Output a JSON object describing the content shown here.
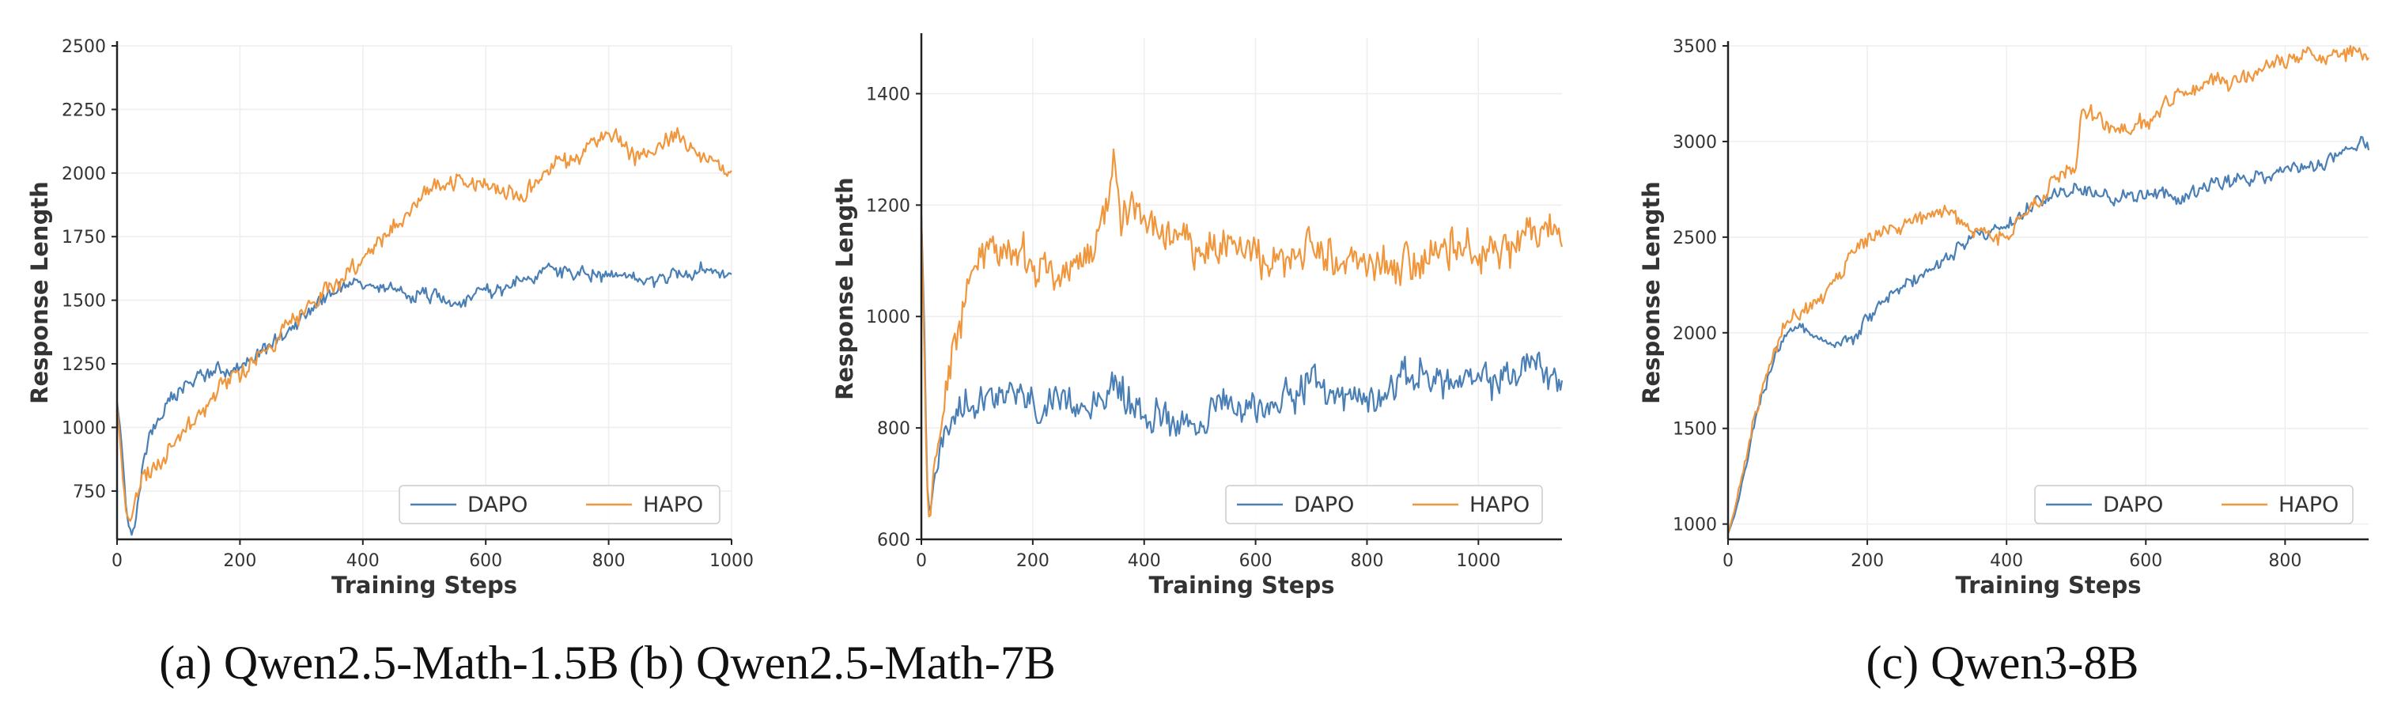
{
  "colors": {
    "DAPO": "#4a7fb5",
    "HAPO": "#f0963c",
    "grid": "#eeeeee",
    "axis": "#222222"
  },
  "chart_data": [
    {
      "type": "line",
      "caption": "(a) Qwen2.5-Math-1.5B",
      "xlabel": "Training Steps",
      "ylabel": "Response Length",
      "xlim": [
        0,
        1000
      ],
      "ylim": [
        560,
        2500
      ],
      "xticks": [
        0,
        200,
        400,
        600,
        800,
        1000
      ],
      "xtick_labels": [
        "0",
        "200",
        "400",
        "600",
        "800",
        "1000"
      ],
      "yticks": [
        750,
        1000,
        1250,
        1500,
        1750,
        2000,
        2250,
        2500
      ],
      "ytick_labels": [
        "750",
        "1000",
        "1250",
        "1500",
        "1750",
        "2000",
        "2250",
        "2500"
      ],
      "grid": true,
      "legend": "bottom-right",
      "series": [
        {
          "name": "DAPO",
          "x": [
            0,
            5,
            10,
            15,
            20,
            25,
            30,
            40,
            50,
            60,
            80,
            100,
            120,
            150,
            200,
            250,
            300,
            350,
            380,
            400,
            450,
            500,
            550,
            600,
            650,
            700,
            750,
            800,
            850,
            900,
            950,
            1000
          ],
          "values": [
            1100,
            1000,
            850,
            680,
            600,
            580,
            620,
            800,
            950,
            1020,
            1080,
            1130,
            1180,
            1220,
            1230,
            1320,
            1430,
            1540,
            1570,
            1560,
            1530,
            1520,
            1500,
            1540,
            1560,
            1620,
            1610,
            1590,
            1580,
            1600,
            1620,
            1600
          ]
        },
        {
          "name": "HAPO",
          "x": [
            0,
            5,
            10,
            15,
            20,
            25,
            30,
            40,
            50,
            60,
            80,
            100,
            150,
            200,
            250,
            300,
            350,
            400,
            450,
            500,
            550,
            600,
            650,
            700,
            750,
            800,
            850,
            900,
            950,
            1000
          ],
          "values": [
            1090,
            950,
            780,
            660,
            630,
            640,
            700,
            800,
            820,
            840,
            880,
            960,
            1100,
            1220,
            1320,
            1440,
            1560,
            1650,
            1800,
            1920,
            1980,
            1950,
            1900,
            2000,
            2080,
            2150,
            2050,
            2150,
            2080,
            2000
          ]
        }
      ]
    },
    {
      "type": "line",
      "caption": "(b) Qwen2.5-Math-7B",
      "xlabel": "Training Steps",
      "ylabel": "Response Length",
      "xlim": [
        0,
        1150
      ],
      "ylim": [
        600,
        1500
      ],
      "xticks": [
        0,
        200,
        400,
        600,
        800,
        1000
      ],
      "xtick_labels": [
        "0",
        "200",
        "400",
        "600",
        "800",
        "1000"
      ],
      "yticks": [
        600,
        800,
        1000,
        1200,
        1400
      ],
      "ytick_labels": [
        "600",
        "800",
        "1000",
        "1200",
        "1400"
      ],
      "grid": true,
      "legend": "bottom-right",
      "series": [
        {
          "name": "DAPO",
          "x": [
            0,
            5,
            10,
            15,
            20,
            30,
            40,
            60,
            80,
            100,
            150,
            200,
            250,
            300,
            350,
            400,
            450,
            500,
            550,
            600,
            650,
            700,
            750,
            800,
            850,
            900,
            950,
            1000,
            1050,
            1100,
            1150
          ],
          "values": [
            1180,
            1000,
            700,
            640,
            680,
            740,
            780,
            820,
            850,
            860,
            870,
            840,
            830,
            850,
            870,
            820,
            820,
            810,
            840,
            830,
            860,
            880,
            860,
            850,
            880,
            900,
            880,
            880,
            890,
            920,
            880
          ]
        },
        {
          "name": "HAPO",
          "x": [
            0,
            5,
            10,
            15,
            20,
            30,
            40,
            60,
            80,
            100,
            130,
            150,
            200,
            250,
            300,
            330,
            345,
            360,
            400,
            450,
            500,
            550,
            600,
            650,
            700,
            750,
            800,
            850,
            900,
            950,
            1000,
            1050,
            1100,
            1150
          ],
          "values": [
            1180,
            950,
            700,
            630,
            680,
            780,
            860,
            950,
            1030,
            1100,
            1130,
            1120,
            1090,
            1070,
            1100,
            1180,
            1290,
            1180,
            1160,
            1150,
            1120,
            1120,
            1110,
            1100,
            1120,
            1100,
            1090,
            1080,
            1100,
            1120,
            1120,
            1130,
            1160,
            1150
          ]
        }
      ]
    },
    {
      "type": "line",
      "caption": "(c) Qwen3-8B",
      "xlabel": "Training Steps",
      "ylabel": "Response Length",
      "xlim": [
        0,
        920
      ],
      "ylim": [
        920,
        3500
      ],
      "xticks": [
        0,
        200,
        400,
        600,
        800
      ],
      "xtick_labels": [
        "0",
        "200",
        "400",
        "600",
        "800"
      ],
      "yticks": [
        1000,
        1500,
        2000,
        2500,
        3000,
        3500
      ],
      "ytick_labels": [
        "1000",
        "1500",
        "2000",
        "2500",
        "3000",
        "3500"
      ],
      "grid": true,
      "legend": "bottom-right",
      "series": [
        {
          "name": "DAPO",
          "x": [
            0,
            10,
            20,
            30,
            40,
            50,
            60,
            80,
            100,
            120,
            150,
            180,
            200,
            250,
            300,
            350,
            400,
            450,
            500,
            550,
            600,
            650,
            700,
            750,
            800,
            850,
            900,
            920
          ],
          "values": [
            950,
            1050,
            1200,
            1350,
            1550,
            1700,
            1800,
            2000,
            2020,
            2000,
            1950,
            1950,
            2100,
            2250,
            2350,
            2500,
            2550,
            2700,
            2750,
            2700,
            2720,
            2700,
            2780,
            2800,
            2850,
            2880,
            2950,
            3000
          ]
        },
        {
          "name": "HAPO",
          "x": [
            0,
            10,
            20,
            30,
            40,
            50,
            60,
            80,
            100,
            150,
            200,
            250,
            300,
            350,
            400,
            450,
            500,
            510,
            550,
            600,
            650,
            700,
            750,
            800,
            850,
            900,
            920
          ],
          "values": [
            950,
            1080,
            1250,
            1420,
            1600,
            1750,
            1850,
            2050,
            2100,
            2250,
            2500,
            2550,
            2650,
            2550,
            2500,
            2700,
            2900,
            3200,
            3050,
            3100,
            3250,
            3300,
            3350,
            3420,
            3450,
            3450,
            3450
          ]
        }
      ]
    }
  ]
}
